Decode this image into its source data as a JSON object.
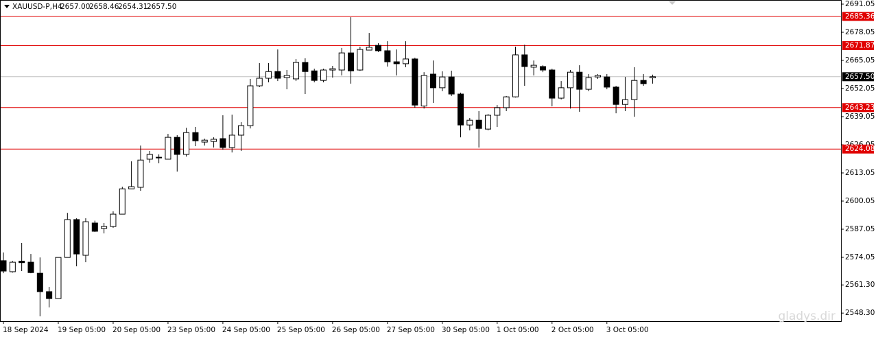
{
  "chart_data": {
    "type": "candlestick",
    "symbol": "XAUUSD-P,H4",
    "ohlc_labels": [
      "2657.00",
      "2658.46",
      "2654.31",
      "2657.50"
    ],
    "watermark": "gladys.dir",
    "categories": [
      "18 Sep 2024",
      null,
      null,
      null,
      null,
      null,
      "19 Sep 05:00",
      null,
      null,
      null,
      null,
      null,
      "20 Sep 05:00",
      null,
      null,
      null,
      null,
      null,
      "23 Sep 05:00",
      null,
      null,
      null,
      null,
      null,
      "24 Sep 05:00",
      null,
      null,
      null,
      null,
      null,
      "25 Sep 05:00",
      null,
      null,
      null,
      null,
      null,
      "26 Sep 05:00",
      null,
      null,
      null,
      null,
      null,
      "27 Sep 05:00",
      null,
      null,
      null,
      null,
      null,
      "30 Sep 05:00",
      null,
      null,
      null,
      null,
      null,
      "1 Oct 05:00",
      null,
      null,
      null,
      null,
      null,
      "2 Oct 05:00",
      null,
      null,
      null,
      null,
      null,
      "3 Oct 05:00",
      null,
      null,
      null,
      null,
      null
    ],
    "open": [
      2572.5,
      2567.4,
      2572.3,
      2571.8,
      2566.7,
      2558.2,
      2555.0,
      2574.0,
      2591.5,
      2575.0,
      2589.9,
      2587.4,
      2588.3,
      2594.0,
      2605.7,
      2606.4,
      2619.4,
      2620.3,
      2619.4,
      2629.5,
      2621.6,
      2631.7,
      2627.3,
      2627.6,
      2628.9,
      2624.8,
      2630.5,
      2634.9,
      2653.3,
      2656.8,
      2659.9,
      2657.1,
      2656.5,
      2664.1,
      2660.2,
      2655.8,
      2660.6,
      2660.6,
      2668.5,
      2660.6,
      2669.8,
      2672.0,
      2669.5,
      2664.4,
      2663.5,
      2665.7,
      2644.0,
      2658.7,
      2652.4,
      2657.4,
      2649.5,
      2635.2,
      2637.4,
      2633.3,
      2639.7,
      2643.2,
      2648.2,
      2667.6,
      2661.9,
      2662.2,
      2660.6,
      2647.6,
      2652.4,
      2659.6,
      2651.7,
      2657.4,
      2657.4,
      2652.7,
      2644.7,
      2646.9,
      2655.8,
      2657.0
    ],
    "high": [
      2576.3,
      2572.4,
      2580.7,
      2575.6,
      2574.0,
      2560.4,
      2574.0,
      2594.6,
      2592.1,
      2592.1,
      2591.0,
      2589.9,
      2595.3,
      2606.7,
      2618.4,
      2625.7,
      2623.2,
      2621.6,
      2631.1,
      2630.5,
      2633.9,
      2634.3,
      2628.9,
      2629.5,
      2639.7,
      2640.0,
      2636.5,
      2656.5,
      2663.8,
      2663.8,
      2670.1,
      2660.6,
      2665.7,
      2666.0,
      2661.2,
      2661.2,
      2662.5,
      2670.8,
      2685.0,
      2671.4,
      2677.7,
      2673.0,
      2673.9,
      2670.1,
      2673.9,
      2666.3,
      2659.6,
      2665.0,
      2660.0,
      2660.3,
      2650.1,
      2638.4,
      2641.6,
      2640.3,
      2644.4,
      2648.6,
      2671.4,
      2672.3,
      2665.0,
      2662.8,
      2661.2,
      2655.5,
      2660.6,
      2662.8,
      2658.7,
      2658.7,
      2658.7,
      2653.3,
      2657.4,
      2661.9,
      2658.7,
      2658.46
    ],
    "low": [
      2566.7,
      2567.0,
      2567.7,
      2566.7,
      2546.8,
      2550.9,
      2555.0,
      2574.0,
      2569.9,
      2571.8,
      2585.8,
      2585.1,
      2587.7,
      2594.0,
      2605.7,
      2604.8,
      2617.8,
      2617.5,
      2619.4,
      2613.7,
      2620.6,
      2625.4,
      2625.7,
      2624.8,
      2623.8,
      2622.5,
      2623.2,
      2633.6,
      2652.7,
      2654.9,
      2655.5,
      2651.7,
      2655.5,
      2649.5,
      2654.9,
      2654.9,
      2657.1,
      2658.1,
      2654.3,
      2660.2,
      2669.8,
      2668.9,
      2662.2,
      2658.1,
      2661.9,
      2643.2,
      2642.8,
      2645.4,
      2650.8,
      2648.6,
      2629.5,
      2632.7,
      2624.8,
      2632.7,
      2634.3,
      2641.6,
      2647.9,
      2653.3,
      2658.1,
      2659.6,
      2643.8,
      2647.0,
      2642.8,
      2641.3,
      2650.8,
      2656.5,
      2651.7,
      2640.6,
      2641.6,
      2639.0,
      2653.3,
      2654.31
    ],
    "close": [
      2567.7,
      2571.8,
      2571.6,
      2567.0,
      2558.2,
      2555.0,
      2574.0,
      2591.5,
      2575.6,
      2590.5,
      2586.1,
      2588.3,
      2594.0,
      2605.7,
      2606.7,
      2619.0,
      2621.6,
      2620.0,
      2629.5,
      2621.6,
      2631.7,
      2627.9,
      2628.2,
      2628.6,
      2624.8,
      2630.5,
      2634.9,
      2653.3,
      2656.8,
      2659.9,
      2656.8,
      2658.1,
      2664.1,
      2659.9,
      2655.8,
      2660.6,
      2661.2,
      2668.5,
      2660.2,
      2670.1,
      2671.1,
      2669.5,
      2664.4,
      2663.5,
      2665.7,
      2644.4,
      2658.1,
      2652.4,
      2657.4,
      2649.5,
      2635.2,
      2637.4,
      2633.6,
      2639.7,
      2643.2,
      2648.2,
      2667.6,
      2662.2,
      2662.8,
      2660.6,
      2647.6,
      2652.4,
      2659.6,
      2651.7,
      2657.1,
      2658.1,
      2652.7,
      2644.7,
      2646.9,
      2655.8,
      2654.3,
      2657.5
    ],
    "up_color": "#ffffff",
    "down_color": "#000000",
    "ylim": [
      2544.56,
      2692.95
    ],
    "yticks": [
      2691.05,
      2678.05,
      2665.05,
      2652.05,
      2639.05,
      2626.05,
      2613.05,
      2600.05,
      2587.05,
      2574.05,
      {
        "value": 2561.3,
        "label": "2561.30"
      },
      {
        "value": 2548.3,
        "label": "2548.30"
      }
    ],
    "hlines": [
      {
        "value": 2685.36,
        "color": "#e00000"
      },
      {
        "value": 2671.87,
        "color": "#e00000"
      },
      {
        "value": 2643.23,
        "color": "#e00000"
      },
      {
        "value": 2624.08,
        "color": "#e00000"
      },
      {
        "value": 2657.5,
        "label": "2657.50",
        "color": "#000000"
      }
    ]
  }
}
